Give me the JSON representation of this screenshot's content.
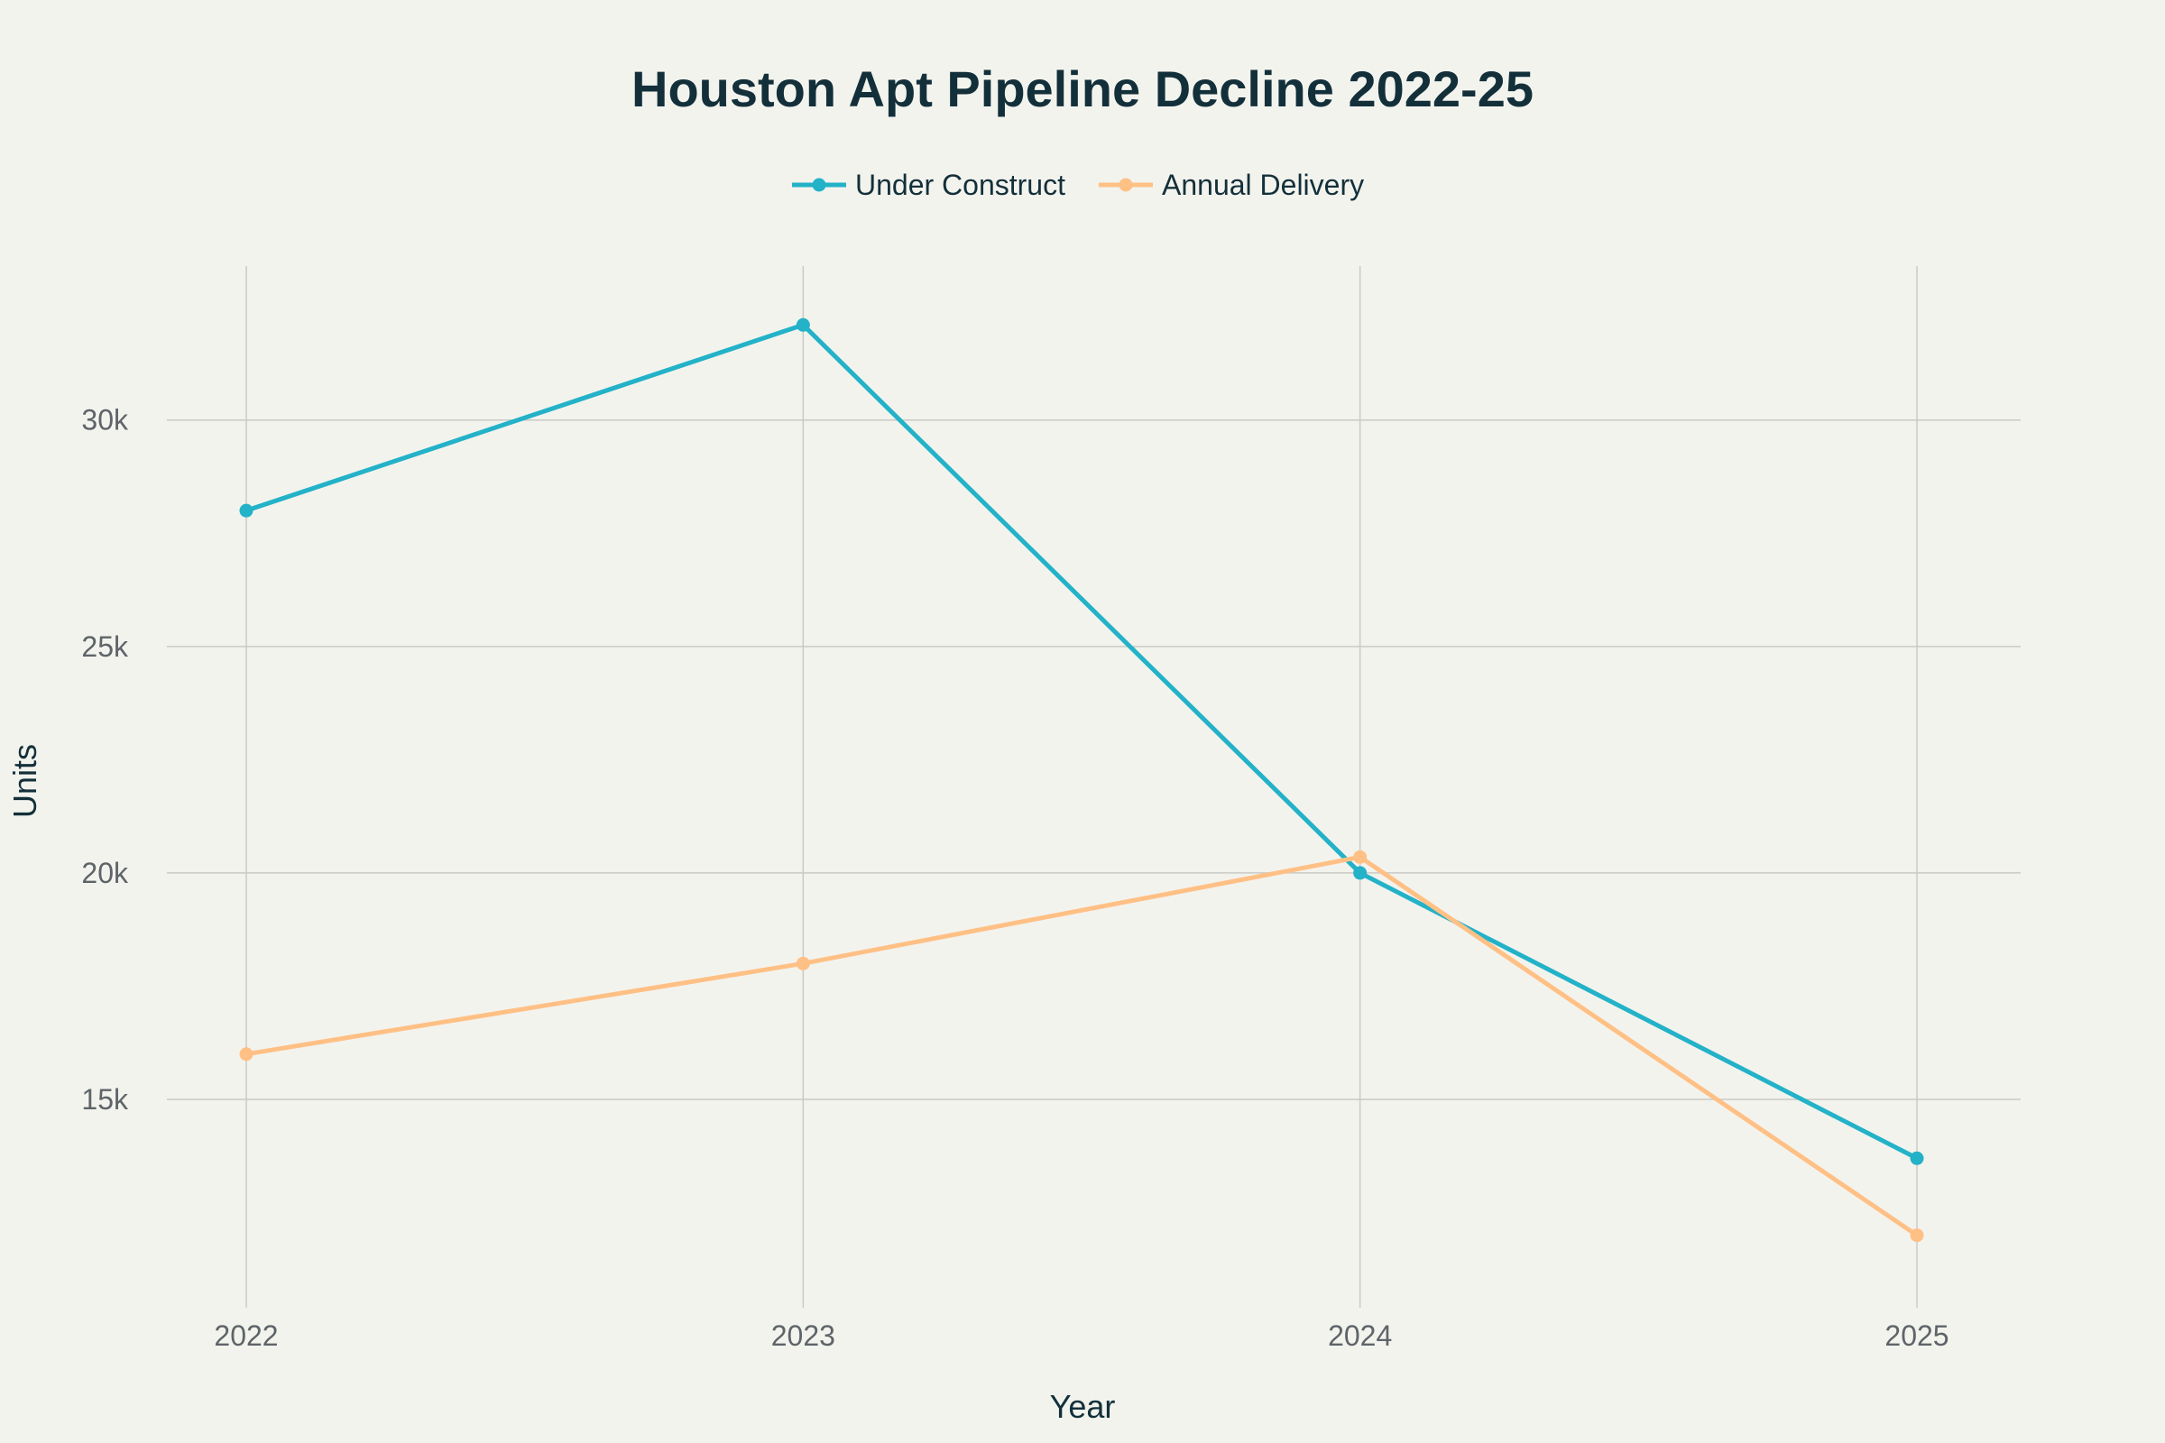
{
  "chart_data": {
    "type": "line",
    "title": "Houston Apt Pipeline Decline 2022-25",
    "xlabel": "Year",
    "ylabel": "Units",
    "x": [
      "2022",
      "2023",
      "2024",
      "2025"
    ],
    "y_ticks": [
      15000,
      20000,
      25000,
      30000
    ],
    "y_tick_labels": [
      "15k",
      "20k",
      "25k",
      "30k"
    ],
    "ylim": [
      10400,
      33400
    ],
    "grid": true,
    "legend": "top-center",
    "series": [
      {
        "name": "Under Construct",
        "color": "#23b2c8",
        "values": [
          28000,
          32100,
          20000,
          13700
        ]
      },
      {
        "name": "Annual Delivery",
        "color": "#ffc085",
        "values": [
          16000,
          18000,
          20350,
          12000
        ]
      }
    ]
  }
}
